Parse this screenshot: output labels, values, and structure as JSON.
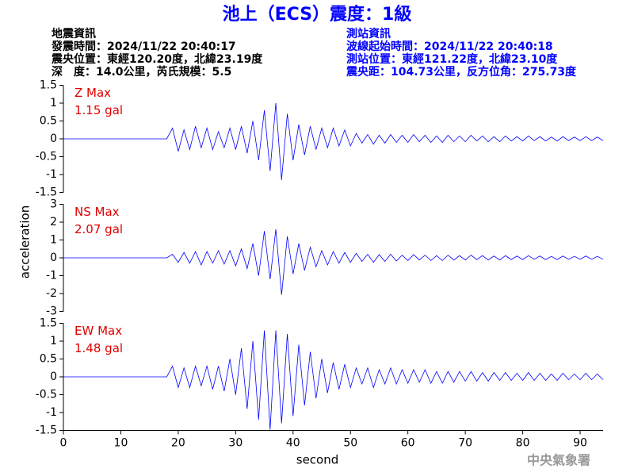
{
  "header": {
    "title": "池上（ECS）震度：1級",
    "left": [
      "地震資訊",
      "發震時間：2024/11/22 20:40:17",
      "震央位置：東經120.20度，北緯23.19度",
      "深　度：14.0公里，芮氏規模：5.5"
    ],
    "right": [
      "測站資訊",
      "波線起始時間：2024/11/22 20:40:18",
      "測站位置：東經121.22度，北緯23.10度",
      "震央距：104.73公里，反方位角：275.73度"
    ],
    "footer": "中央氣象署"
  },
  "chart_data": [
    {
      "type": "line",
      "annotations": [
        "Z Max",
        "1.15 gal"
      ],
      "color": "#0000ff",
      "xlim": [
        0,
        94
      ],
      "ylim": [
        -1.5,
        1.5
      ],
      "yticks": [
        -1.5,
        -1,
        -0.5,
        0,
        0.5,
        1,
        1.5
      ],
      "x": [
        0,
        1,
        2,
        3,
        4,
        5,
        6,
        7,
        8,
        9,
        10,
        11,
        12,
        13,
        14,
        15,
        16,
        17,
        18,
        19,
        20,
        21,
        22,
        23,
        24,
        25,
        26,
        27,
        28,
        29,
        30,
        31,
        32,
        33,
        34,
        35,
        36,
        37,
        38,
        39,
        40,
        41,
        42,
        43,
        44,
        45,
        46,
        47,
        48,
        49,
        50,
        51,
        52,
        53,
        54,
        55,
        56,
        57,
        58,
        59,
        60,
        61,
        62,
        63,
        64,
        65,
        66,
        67,
        68,
        69,
        70,
        71,
        72,
        73,
        74,
        75,
        76,
        77,
        78,
        79,
        80,
        81,
        82,
        83,
        84,
        85,
        86,
        87,
        88,
        89,
        90,
        91,
        92,
        93,
        94
      ],
      "values": [
        0,
        0,
        0,
        0,
        0,
        0,
        0,
        0,
        0,
        0,
        0,
        0,
        0,
        0,
        0,
        0,
        0,
        0,
        0,
        0.3,
        -0.35,
        0.25,
        -0.3,
        0.35,
        -0.25,
        0.3,
        -0.3,
        0.2,
        -0.25,
        0.3,
        -0.3,
        0.35,
        -0.4,
        0.5,
        -0.6,
        0.8,
        -0.9,
        1.0,
        -1.15,
        0.7,
        -0.6,
        0.4,
        -0.45,
        0.35,
        -0.3,
        0.3,
        -0.25,
        0.3,
        -0.2,
        0.25,
        -0.2,
        0.15,
        -0.12,
        0.12,
        -0.15,
        0.1,
        -0.12,
        0.12,
        -0.1,
        0.1,
        -0.1,
        0.12,
        -0.08,
        0.1,
        -0.1,
        0.08,
        -0.1,
        0.1,
        -0.08,
        0.08,
        -0.08,
        0.1,
        -0.06,
        0.08,
        -0.08,
        0.06,
        -0.08,
        0.08,
        -0.06,
        0.06,
        -0.06,
        0.08,
        -0.05,
        0.06,
        -0.06,
        0.05,
        -0.06,
        0.06,
        -0.05,
        0.05,
        -0.05,
        0.06,
        -0.05,
        0.05,
        -0.05
      ]
    },
    {
      "type": "line",
      "annotations": [
        "NS Max",
        "2.07 gal"
      ],
      "color": "#0000ff",
      "ylabel": "acceleration",
      "xlim": [
        0,
        94
      ],
      "ylim": [
        -3,
        3
      ],
      "yticks": [
        -3,
        -2,
        -1,
        0,
        1,
        2,
        3
      ],
      "x": [
        0,
        1,
        2,
        3,
        4,
        5,
        6,
        7,
        8,
        9,
        10,
        11,
        12,
        13,
        14,
        15,
        16,
        17,
        18,
        19,
        20,
        21,
        22,
        23,
        24,
        25,
        26,
        27,
        28,
        29,
        30,
        31,
        32,
        33,
        34,
        35,
        36,
        37,
        38,
        39,
        40,
        41,
        42,
        43,
        44,
        45,
        46,
        47,
        48,
        49,
        50,
        51,
        52,
        53,
        54,
        55,
        56,
        57,
        58,
        59,
        60,
        61,
        62,
        63,
        64,
        65,
        66,
        67,
        68,
        69,
        70,
        71,
        72,
        73,
        74,
        75,
        76,
        77,
        78,
        79,
        80,
        81,
        82,
        83,
        84,
        85,
        86,
        87,
        88,
        89,
        90,
        91,
        92,
        93,
        94
      ],
      "values": [
        0,
        0,
        0,
        0,
        0,
        0,
        0,
        0,
        0,
        0,
        0,
        0,
        0,
        0,
        0,
        0,
        0,
        0,
        0,
        0.2,
        -0.25,
        0.3,
        -0.3,
        0.35,
        -0.4,
        0.35,
        -0.3,
        0.4,
        -0.35,
        0.4,
        -0.45,
        0.5,
        -0.6,
        0.8,
        -1.0,
        1.5,
        -1.2,
        1.6,
        -2.07,
        1.2,
        -0.9,
        0.8,
        -0.7,
        0.6,
        -0.5,
        0.4,
        -0.4,
        0.35,
        -0.3,
        0.3,
        -0.25,
        0.25,
        -0.2,
        0.2,
        -0.25,
        0.18,
        -0.2,
        0.2,
        -0.18,
        0.15,
        -0.15,
        0.18,
        -0.12,
        0.15,
        -0.15,
        0.12,
        -0.15,
        0.15,
        -0.12,
        0.12,
        -0.12,
        0.15,
        -0.1,
        0.12,
        -0.12,
        0.1,
        -0.12,
        0.12,
        -0.1,
        0.1,
        -0.1,
        0.12,
        -0.08,
        0.1,
        -0.1,
        0.08,
        -0.1,
        0.1,
        -0.08,
        0.08,
        -0.08,
        0.1,
        -0.08,
        0.08,
        -0.08
      ]
    },
    {
      "type": "line",
      "annotations": [
        "EW Max",
        "1.48 gal"
      ],
      "color": "#0000ff",
      "xlabel": "second",
      "xlim": [
        0,
        94
      ],
      "xticks": [
        0,
        10,
        20,
        30,
        40,
        50,
        60,
        70,
        80,
        90
      ],
      "ylim": [
        -1.5,
        1.5
      ],
      "yticks": [
        -1.5,
        -1,
        -0.5,
        0,
        0.5,
        1,
        1.5
      ],
      "x": [
        0,
        1,
        2,
        3,
        4,
        5,
        6,
        7,
        8,
        9,
        10,
        11,
        12,
        13,
        14,
        15,
        16,
        17,
        18,
        19,
        20,
        21,
        22,
        23,
        24,
        25,
        26,
        27,
        28,
        29,
        30,
        31,
        32,
        33,
        34,
        35,
        36,
        37,
        38,
        39,
        40,
        41,
        42,
        43,
        44,
        45,
        46,
        47,
        48,
        49,
        50,
        51,
        52,
        53,
        54,
        55,
        56,
        57,
        58,
        59,
        60,
        61,
        62,
        63,
        64,
        65,
        66,
        67,
        68,
        69,
        70,
        71,
        72,
        73,
        74,
        75,
        76,
        77,
        78,
        79,
        80,
        81,
        82,
        83,
        84,
        85,
        86,
        87,
        88,
        89,
        90,
        91,
        92,
        93,
        94
      ],
      "values": [
        0,
        0,
        0,
        0,
        0,
        0,
        0,
        0,
        0,
        0,
        0,
        0,
        0,
        0,
        0,
        0,
        0,
        0,
        0,
        0.3,
        -0.3,
        0.25,
        -0.3,
        0.3,
        -0.25,
        0.3,
        -0.35,
        0.3,
        -0.4,
        0.5,
        -0.5,
        0.8,
        -0.9,
        1.0,
        -1.2,
        1.3,
        -1.48,
        1.3,
        -1.3,
        1.2,
        -1.1,
        0.9,
        -0.8,
        0.7,
        -0.6,
        0.5,
        -0.45,
        0.4,
        -0.35,
        0.35,
        -0.3,
        0.25,
        -0.2,
        0.25,
        -0.3,
        0.2,
        -0.2,
        0.25,
        -0.2,
        0.2,
        -0.18,
        0.2,
        -0.15,
        0.2,
        -0.18,
        0.15,
        -0.18,
        0.15,
        -0.15,
        0.15,
        -0.12,
        0.15,
        -0.12,
        0.12,
        -0.12,
        0.12,
        -0.1,
        0.12,
        -0.1,
        0.1,
        -0.1,
        0.12,
        -0.1,
        0.1,
        -0.1,
        0.08,
        -0.1,
        0.1,
        -0.08,
        0.08,
        -0.08,
        0.1,
        -0.08,
        0.08,
        -0.08
      ]
    }
  ]
}
